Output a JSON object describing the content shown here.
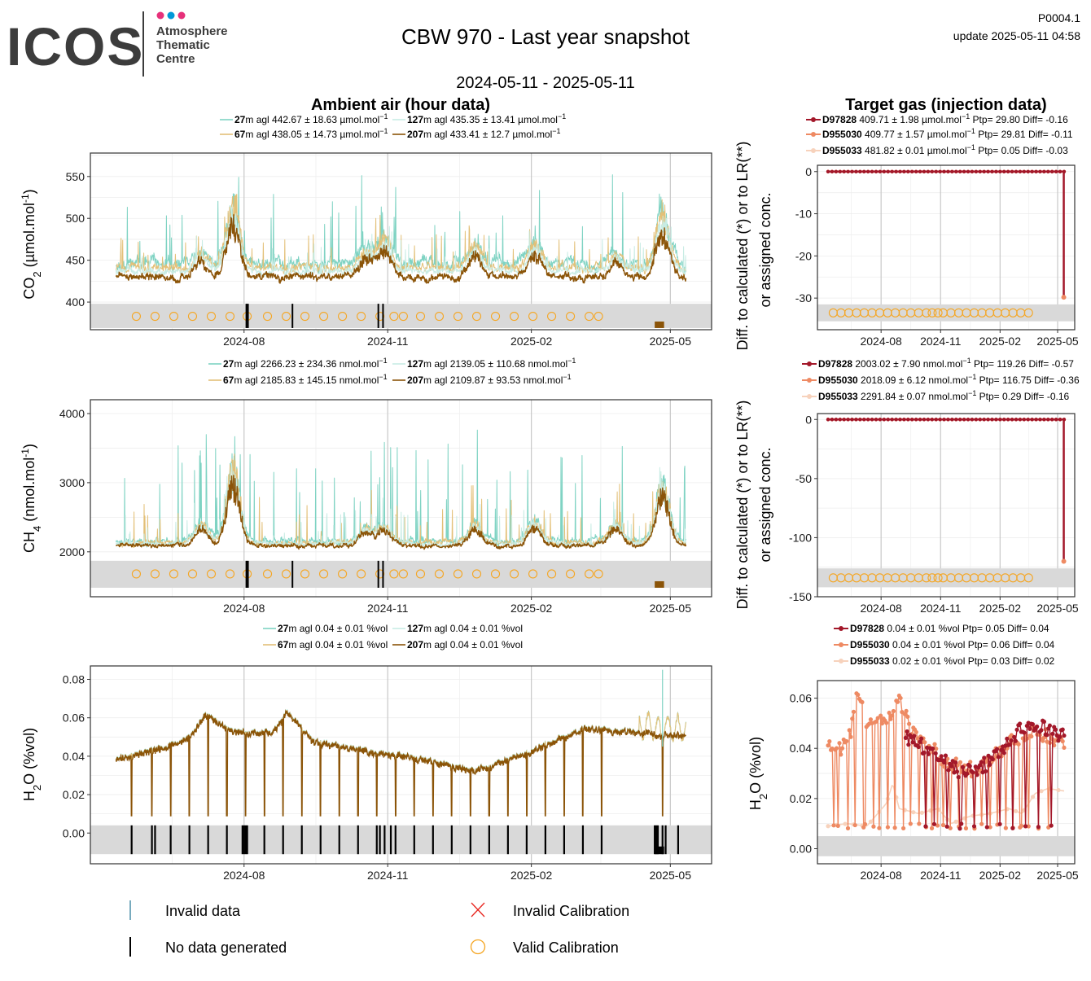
{
  "header": {
    "logo_text": "ICOS",
    "logo_sub": [
      "Atmosphere",
      "Thematic",
      "Centre"
    ],
    "logo_dot_colors": [
      "#e6317a",
      "#0098d8",
      "#e6317a"
    ],
    "title": "CBW 970 - Last year snapshot",
    "date_range": "2024-05-11 - 2025-05-11",
    "product_id": "P0004.1",
    "update_text": "update  2025-05-11 04:58"
  },
  "section_titles": {
    "ambient": "Ambient air (hour data)",
    "target": "Target gas (injection data)"
  },
  "colors": {
    "lvl27": "#7fd3c3",
    "lvl67": "#e3c078",
    "lvl127": "#c8ece4",
    "lvl207": "#8b5408",
    "tg_D97828": "#a3182a",
    "tg_D955030": "#ee8a63",
    "tg_D955033": "#f7d2bc",
    "valid_cal": "#f5a623",
    "invalid_cal": "#e8251e",
    "invalid_data": "#4a8fa8",
    "no_data": "#000000",
    "band": "#d9d9d9"
  },
  "legends": {
    "co2_ambient": [
      {
        "bold": "27",
        "text": "m agl 442.67 ± 18.63 µmol.mol",
        "sup": "−1",
        "color_key": "lvl27"
      },
      {
        "bold": "127",
        "text": "m agl 435.35 ± 13.41 µmol.mol",
        "sup": "−1",
        "color_key": "lvl127"
      },
      {
        "bold": "67",
        "text": "m agl 438.05 ± 14.73 µmol.mol",
        "sup": "−1",
        "color_key": "lvl67"
      },
      {
        "bold": "207",
        "text": "m agl 433.41 ± 12.7 µmol.mol",
        "sup": "−1",
        "color_key": "lvl207"
      }
    ],
    "ch4_ambient": [
      {
        "bold": "27",
        "text": "m agl 2266.23 ± 234.36 nmol.mol",
        "sup": "−1",
        "color_key": "lvl27"
      },
      {
        "bold": "127",
        "text": "m agl 2139.05 ± 110.68 nmol.mol",
        "sup": "−1",
        "color_key": "lvl127"
      },
      {
        "bold": "67",
        "text": "m agl 2185.83 ± 145.15 nmol.mol",
        "sup": "−1",
        "color_key": "lvl67"
      },
      {
        "bold": "207",
        "text": "m agl 2109.87 ± 93.53 nmol.mol",
        "sup": "−1",
        "color_key": "lvl207"
      }
    ],
    "h2o_ambient": [
      {
        "bold": "27",
        "text": "m agl 0.04 ± 0.01 %vol",
        "sup": "",
        "color_key": "lvl27"
      },
      {
        "bold": "127",
        "text": "m agl 0.04 ± 0.01 %vol",
        "sup": "",
        "color_key": "lvl127"
      },
      {
        "bold": "67",
        "text": "m agl 0.04 ± 0.01 %vol",
        "sup": "",
        "color_key": "lvl67"
      },
      {
        "bold": "207",
        "text": "m agl 0.04 ± 0.01 %vol",
        "sup": "",
        "color_key": "lvl207"
      }
    ],
    "co2_target": [
      {
        "bold": "D97828",
        "text": " 409.71 ± 1.98 µmol.mol",
        "sup": "−1",
        "tail": " Ptp= 29.80 Diff= -0.16",
        "color_key": "tg_D97828"
      },
      {
        "bold": "D955030",
        "text": " 409.77 ± 1.57 µmol.mol",
        "sup": "−1",
        "tail": " Ptp= 29.81 Diff= -0.11",
        "color_key": "tg_D955030"
      },
      {
        "bold": "D955033",
        "text": " 481.82 ± 0.01 µmol.mol",
        "sup": "−1",
        "tail": " Ptp= 0.05 Diff= -0.03",
        "color_key": "tg_D955033"
      }
    ],
    "ch4_target": [
      {
        "bold": "D97828",
        "text": " 2003.02 ± 7.90 nmol.mol",
        "sup": "−1",
        "tail": " Ptp= 119.26 Diff= -0.57",
        "color_key": "tg_D97828"
      },
      {
        "bold": "D955030",
        "text": " 2018.09 ± 6.12 nmol.mol",
        "sup": "−1",
        "tail": " Ptp= 116.75 Diff= -0.36",
        "color_key": "tg_D955030"
      },
      {
        "bold": "D955033",
        "text": " 2291.84 ± 0.07 nmol.mol",
        "sup": "−1",
        "tail": " Ptp= 0.29 Diff= -0.16",
        "color_key": "tg_D955033"
      }
    ],
    "h2o_target": [
      {
        "bold": "D97828",
        "text": " 0.04 ± 0.01 %vol",
        "sup": "",
        "tail": " Ptp= 0.05 Diff= 0.04",
        "color_key": "tg_D97828"
      },
      {
        "bold": "D955030",
        "text": " 0.04 ± 0.01 %vol",
        "sup": "",
        "tail": " Ptp= 0.06 Diff= 0.04",
        "color_key": "tg_D955030"
      },
      {
        "bold": "D955033",
        "text": " 0.02 ± 0.01 %vol",
        "sup": "",
        "tail": " Ptp= 0.03 Diff= 0.02",
        "color_key": "tg_D955033"
      }
    ]
  },
  "bottom_legend": {
    "invalid_data": "Invalid data",
    "no_data": "No data generated",
    "invalid_cal": "Invalid Calibration",
    "valid_cal": "Valid Calibration"
  },
  "chart_data": [
    {
      "id": "co2_ambient",
      "type": "line",
      "title": "",
      "ylabel": "CO₂ (µmol.mol⁻¹)",
      "ylabel_main": "CO",
      "ylabel_sub": "2",
      "ylabel_rest": " (µmol.mol",
      "ylabel_sup": "-1",
      "ylabel_end": ")",
      "xlim": [
        "2024-05-11",
        "2025-05-11"
      ],
      "x_ticks": [
        "2024-08",
        "2024-11",
        "2025-02",
        "2025-05"
      ],
      "ylim": [
        367,
        578
      ],
      "y_ticks": [
        400,
        450,
        500,
        550
      ],
      "baseline": {
        "27": 446,
        "67": 441,
        "127": 437,
        "207": 430
      },
      "noise": {
        "27": 8,
        "67": 6,
        "127": 5,
        "207": 5
      },
      "spike_scale": {
        "27": 70,
        "67": 30,
        "127": 25,
        "207": 0
      },
      "event_days": [
        {
          "day": 55,
          "value": 470
        },
        {
          "day": 75,
          "value": 565
        },
        {
          "day": 160,
          "value": 478
        },
        {
          "day": 172,
          "value": 500
        },
        {
          "day": 230,
          "value": 487
        },
        {
          "day": 268,
          "value": 489
        },
        {
          "day": 320,
          "value": 470
        },
        {
          "day": 350,
          "value": 550
        }
      ],
      "cal_band": [
        369,
        398
      ],
      "cal_marker_value": 383,
      "cal_days": [
        13,
        25,
        37,
        49,
        61,
        73,
        84,
        97,
        109,
        121,
        133,
        145,
        157,
        169,
        178,
        184,
        195,
        207,
        219,
        231,
        243,
        255,
        267,
        279,
        291,
        303,
        309
      ],
      "no_data_days": [
        83.5,
        84.5,
        113,
        168,
        171
      ]
    },
    {
      "id": "ch4_ambient",
      "type": "line",
      "title": "",
      "ylabel": "CH₄ (nmol.mol⁻¹)",
      "ylabel_main": "CH",
      "ylabel_sub": "4",
      "ylabel_rest": " (nmol.mol",
      "ylabel_sup": "-1",
      "ylabel_end": ")",
      "xlim": [
        "2024-05-11",
        "2025-05-11"
      ],
      "x_ticks": [
        "2024-08",
        "2024-11",
        "2025-02",
        "2025-05"
      ],
      "ylim": [
        1350,
        4200
      ],
      "y_ticks": [
        2000,
        3000,
        4000
      ],
      "baseline": {
        "27": 2160,
        "67": 2130,
        "127": 2120,
        "207": 2090
      },
      "noise": {
        "27": 60,
        "67": 45,
        "127": 40,
        "207": 35
      },
      "spike_scale": {
        "27": 1100,
        "67": 500,
        "127": 350,
        "207": 0
      },
      "event_days": [
        {
          "day": 55,
          "value": 2600
        },
        {
          "day": 75,
          "value": 4050
        },
        {
          "day": 160,
          "value": 2500
        },
        {
          "day": 172,
          "value": 2550
        },
        {
          "day": 230,
          "value": 2600
        },
        {
          "day": 268,
          "value": 2700
        },
        {
          "day": 320,
          "value": 2600
        },
        {
          "day": 350,
          "value": 3650
        }
      ],
      "cal_band": [
        1480,
        1870
      ],
      "cal_marker_value": 1680,
      "cal_days": [
        13,
        25,
        37,
        49,
        61,
        73,
        84,
        97,
        109,
        121,
        133,
        145,
        157,
        169,
        178,
        184,
        195,
        207,
        219,
        231,
        243,
        255,
        267,
        279,
        291,
        303,
        309
      ],
      "no_data_days": [
        83.5,
        84.5,
        113,
        168,
        171
      ]
    },
    {
      "id": "h2o_ambient",
      "type": "line",
      "title": "",
      "ylabel": "H₂O (%vol)",
      "ylabel_main": "H",
      "ylabel_sub": "2",
      "ylabel_rest": "O (%vol)",
      "ylabel_sup": "",
      "ylabel_end": "",
      "xlim": [
        "2024-05-11",
        "2025-05-11"
      ],
      "x_ticks": [
        "2024-08",
        "2024-11",
        "2025-02",
        "2025-05"
      ],
      "ylim": [
        -0.016,
        0.087
      ],
      "y_ticks": [
        0.0,
        0.02,
        0.04,
        0.06,
        0.08
      ],
      "seasonal": [
        [
          0,
          0.038
        ],
        [
          30,
          0.044
        ],
        [
          45,
          0.048
        ],
        [
          58,
          0.061
        ],
        [
          75,
          0.052
        ],
        [
          100,
          0.052
        ],
        [
          110,
          0.062
        ],
        [
          125,
          0.048
        ],
        [
          165,
          0.042
        ],
        [
          200,
          0.037
        ],
        [
          230,
          0.032
        ],
        [
          260,
          0.04
        ],
        [
          300,
          0.054
        ],
        [
          340,
          0.052
        ],
        [
          365,
          0.05
        ]
      ],
      "dip_days": [
        10,
        23,
        35,
        47,
        59,
        71,
        83,
        95,
        107,
        119,
        131,
        143,
        155,
        167,
        179,
        191,
        203,
        215,
        227,
        239,
        251,
        263,
        275,
        287,
        299,
        311,
        350
      ],
      "dip_value": 0.009,
      "cal_band": [
        -0.011,
        0.004
      ],
      "no_data_days": [
        10,
        23,
        25,
        35,
        47,
        59,
        71,
        81,
        82,
        83,
        84,
        95,
        107,
        119,
        131,
        143,
        155,
        167,
        169,
        172,
        176,
        179,
        191,
        203,
        215,
        227,
        239,
        251,
        263,
        275,
        287,
        299,
        311,
        345,
        346,
        347,
        350,
        352,
        360
      ]
    },
    {
      "id": "co2_target",
      "type": "line",
      "title": "",
      "ylabel_l1": "Diff. to calculated (*) or to LR(**)",
      "ylabel_l2": "or assigned conc.",
      "xlim": [
        "2024-05-11",
        "2025-05-11"
      ],
      "x_ticks": [
        "2024-08",
        "2024-11",
        "2025-02",
        "2025-05"
      ],
      "ylim": [
        -37.5,
        1.5
      ],
      "y_ticks": [
        0,
        -10,
        -20,
        -30
      ],
      "series_values": [
        0,
        0,
        0
      ],
      "drop": {
        "series": "D97828",
        "value": -29.8
      },
      "cal_band": [
        -35.5,
        -31.5
      ],
      "cal_marker_value": -33.5,
      "cal_days": [
        8,
        20,
        32,
        44,
        56,
        68,
        80,
        92,
        104,
        116,
        128,
        140,
        152,
        161,
        170,
        178,
        190,
        202,
        214,
        226,
        238,
        250,
        262,
        274,
        286,
        298,
        310
      ]
    },
    {
      "id": "ch4_target",
      "type": "line",
      "title": "",
      "ylabel_l1": "Diff. to calculated (*) or to LR(**)",
      "ylabel_l2": "or assigned conc.",
      "xlim": [
        "2024-05-11",
        "2025-05-11"
      ],
      "x_ticks": [
        "2024-08",
        "2024-11",
        "2025-02",
        "2025-05"
      ],
      "ylim": [
        -150,
        5
      ],
      "y_ticks": [
        0,
        -50,
        -100,
        -150
      ],
      "series_values": [
        0,
        0,
        0
      ],
      "drop": {
        "series": "D97828",
        "value": -120
      },
      "cal_band": [
        -142,
        -126
      ],
      "cal_marker_value": -134,
      "cal_days": [
        8,
        20,
        32,
        44,
        56,
        68,
        80,
        92,
        104,
        116,
        128,
        140,
        152,
        161,
        170,
        178,
        190,
        202,
        214,
        226,
        238,
        250,
        262,
        274,
        286,
        298,
        310
      ]
    },
    {
      "id": "h2o_target",
      "type": "line",
      "title": "",
      "ylabel": "H₂O (%vol)",
      "ylabel_main": "H",
      "ylabel_sub": "2",
      "ylabel_rest": "O (%vol)",
      "ylabel_sup": "",
      "ylabel_end": "",
      "xlim": [
        "2024-05-11",
        "2025-05-11"
      ],
      "x_ticks": [
        "2024-08",
        "2024-11",
        "2025-02",
        "2025-05"
      ],
      "ylim": [
        -0.006,
        0.067
      ],
      "y_ticks": [
        0.0,
        0.02,
        0.04,
        0.06
      ],
      "cal_band": [
        -0.003,
        0.005
      ],
      "D955030_curve": [
        [
          0,
          0.042
        ],
        [
          20,
          0.04
        ],
        [
          35,
          0.046
        ],
        [
          45,
          0.062
        ],
        [
          60,
          0.05
        ],
        [
          90,
          0.051
        ],
        [
          110,
          0.06
        ],
        [
          130,
          0.048
        ],
        [
          155,
          0.043
        ],
        [
          175,
          0.036
        ],
        [
          200,
          0.033
        ],
        [
          230,
          0.031
        ],
        [
          260,
          0.038
        ],
        [
          290,
          0.044
        ],
        [
          320,
          0.046
        ],
        [
          345,
          0.044
        ],
        [
          365,
          0.043
        ]
      ],
      "D97828_curve": [
        [
          120,
          0.045
        ],
        [
          150,
          0.04
        ],
        [
          180,
          0.035
        ],
        [
          210,
          0.03
        ],
        [
          240,
          0.033
        ],
        [
          270,
          0.04
        ],
        [
          300,
          0.048
        ],
        [
          330,
          0.049
        ],
        [
          365,
          0.045
        ]
      ],
      "D955033_curve": [
        [
          0,
          0.009
        ],
        [
          30,
          0.01
        ],
        [
          60,
          0.009
        ],
        [
          90,
          0.018
        ],
        [
          100,
          0.026
        ],
        [
          110,
          0.016
        ],
        [
          140,
          0.014
        ],
        [
          170,
          0.016
        ],
        [
          190,
          0.01
        ],
        [
          220,
          0.013
        ],
        [
          250,
          0.014
        ],
        [
          280,
          0.016
        ],
        [
          300,
          0.014
        ],
        [
          320,
          0.022
        ],
        [
          340,
          0.024
        ],
        [
          365,
          0.023
        ]
      ],
      "D955030_dip_days": [
        8,
        15,
        30,
        42,
        56,
        70,
        80,
        92,
        104,
        116,
        128,
        140,
        152,
        161,
        170,
        178,
        190,
        202,
        214,
        226,
        238,
        250,
        262,
        274,
        286,
        298,
        310,
        325,
        340
      ],
      "D97828_dip_days": [
        150,
        165,
        185,
        205,
        225,
        245,
        265,
        285,
        305,
        325,
        345
      ],
      "dip_value": 0.009
    }
  ]
}
